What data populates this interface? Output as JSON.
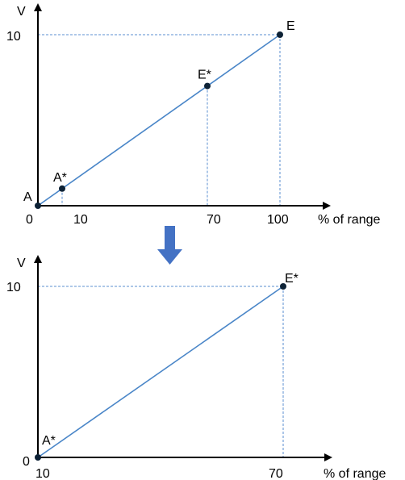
{
  "colors": {
    "line": "#4a86c8",
    "guide": "#5b8fd0",
    "point": "#0d2236",
    "axis": "#000000",
    "arrow": "#4472c4"
  },
  "chart_data": [
    {
      "type": "line",
      "ylabel": "V",
      "xlabel": "% of range",
      "xlim": [
        0,
        100
      ],
      "ylim": [
        0,
        10
      ],
      "xticks": [
        "0",
        "10",
        "70",
        "100"
      ],
      "yticks": [
        "10"
      ],
      "x": [
        0,
        100
      ],
      "y": [
        0,
        10
      ],
      "points": [
        {
          "label": "A",
          "x": 0,
          "y": 0
        },
        {
          "label": "A*",
          "x": 10,
          "y": 1
        },
        {
          "label": "E*",
          "x": 70,
          "y": 7
        },
        {
          "label": "E",
          "x": 100,
          "y": 10
        }
      ]
    },
    {
      "type": "line",
      "ylabel": "V",
      "xlabel": "% of range",
      "xlim": [
        10,
        70
      ],
      "ylim": [
        0,
        10
      ],
      "xticks": [
        "10",
        "70"
      ],
      "yticks": [
        "0",
        "10"
      ],
      "x": [
        10,
        70
      ],
      "y": [
        0,
        10
      ],
      "points": [
        {
          "label": "A*",
          "x": 10,
          "y": 0
        },
        {
          "label": "E*",
          "x": 70,
          "y": 10
        }
      ]
    }
  ]
}
